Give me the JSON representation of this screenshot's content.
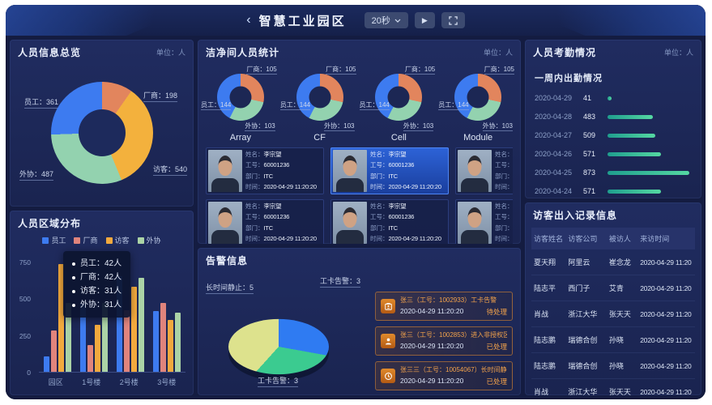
{
  "header": {
    "back_icon": "‹",
    "title": "智慧工业园区",
    "interval_label": "20秒",
    "play_icon": "▶"
  },
  "panels": {
    "overview": {
      "title": "人员信息总览",
      "unit": "单位：人",
      "donut": {
        "start": -10,
        "segments": [
          {
            "label": "厂商",
            "value": 198,
            "color": "#e2855d"
          },
          {
            "label": "访客",
            "value": 540,
            "color": "#f3b13d"
          },
          {
            "label": "外协",
            "value": 487,
            "color": "#93d2af"
          },
          {
            "label": "员工",
            "value": 361,
            "color": "#3d7bf0"
          }
        ]
      },
      "labels": {
        "employee": "员工：361",
        "vendor": "厂商：198",
        "visitor": "访客：540",
        "outsource": "外协：487"
      }
    },
    "region": {
      "title": "人员区域分布",
      "legend": [
        {
          "label": "员工",
          "color": "#3d7bf0"
        },
        {
          "label": "厂商",
          "color": "#e0847c"
        },
        {
          "label": "访客",
          "color": "#f2a93e"
        },
        {
          "label": "外协",
          "color": "#abd3a6"
        }
      ],
      "y_ticks": [
        "750",
        "500",
        "250",
        "0"
      ],
      "ymax": 750,
      "categories": [
        "园区",
        "1号楼",
        "2号楼",
        "3号楼"
      ],
      "series": [
        {
          "name": "员工",
          "values": [
            105,
            465,
            655,
            415
          ]
        },
        {
          "name": "厂商",
          "values": [
            285,
            185,
            420,
            470
          ]
        },
        {
          "name": "访客",
          "values": [
            740,
            325,
            585,
            355
          ]
        },
        {
          "name": "外协",
          "values": [
            475,
            470,
            645,
            405
          ]
        }
      ],
      "tooltip": [
        "员工：42人",
        "厂商：42人",
        "访客：31人",
        "外协：31人"
      ]
    },
    "cleanroom": {
      "title": "洁净间人员统计",
      "unit": "单位：人",
      "donut": {
        "start": -5,
        "segments": [
          {
            "label": "厂商",
            "value": 105,
            "color": "#e2855d"
          },
          {
            "label": "外协",
            "value": 103,
            "color": "#93d2af"
          },
          {
            "label": "员工",
            "value": 144,
            "color": "#3d7bf0"
          }
        ]
      },
      "labels": {
        "top": "厂商：105",
        "left": "员工：144",
        "bottom": "外协：103"
      },
      "donuts": [
        {
          "name": "Array"
        },
        {
          "name": "CF"
        },
        {
          "name": "Cell"
        },
        {
          "name": "Module"
        }
      ]
    },
    "persons": {
      "field_labels": {
        "name": "姓名：",
        "id": "工号：",
        "dept": "部门：",
        "time": "时间："
      },
      "cards": [
        {
          "name": "李宗望",
          "id": "60001236",
          "dept": "ITC",
          "time": "2020-04-29 11:20:20",
          "highlight": false
        },
        {
          "name": "李宗望",
          "id": "60001236",
          "dept": "ITC",
          "time": "2020-04-29 11:20:20",
          "highlight": true
        },
        {
          "name": "李宗望",
          "id": "60001236",
          "dept": "ITC",
          "time": "2020-04-29 11:20:20",
          "highlight": false
        },
        {
          "name": "李宗望",
          "id": "60001236",
          "dept": "ITC",
          "time": "2020-04-29 11:20:20",
          "highlight": false
        },
        {
          "name": "李宗望",
          "id": "60001236",
          "dept": "ITC",
          "time": "2020-04-29 11:20:20",
          "highlight": false
        },
        {
          "name": "李宗望",
          "id": "60001236",
          "dept": "ITC",
          "time": "2020-04-29 11:20:20",
          "highlight": false
        }
      ]
    },
    "alarm": {
      "title": "告警信息",
      "pie": {
        "start": 10,
        "segments": [
          {
            "label": "工卡告警",
            "value": 3,
            "color": "#2f7bf2"
          },
          {
            "label": "工卡告警",
            "value": 3,
            "color": "#3bcb90"
          },
          {
            "label": "长时间静止",
            "value": 5,
            "color": "#dde28d"
          }
        ],
        "labels": {
          "left": "长时间静止：5",
          "right": "工卡告警：3",
          "bottom": "工卡告警：3"
        }
      },
      "items": [
        {
          "icon": "badge-icon",
          "text": "张三（工号：1002933）工卡告警",
          "time": "2020-04-29 11:20:20",
          "status": "待处理"
        },
        {
          "icon": "person-icon",
          "text": "张三（工号：1002853）进入非授权区域B4-1F-C2",
          "time": "2020-04-29 11:20:20",
          "status": "已处理"
        },
        {
          "icon": "clock-icon",
          "text": "张三三（工号：10054067）长时间静止",
          "time": "2020-04-29 11:20:20",
          "status": "已处理"
        }
      ]
    },
    "attendance": {
      "title": "人员考勤情况",
      "unit": "单位：人",
      "subtitle": "一周内出勤情况",
      "max": 900,
      "rows": [
        {
          "date": "2020-04-29",
          "value": 41
        },
        {
          "date": "2020-04-28",
          "value": 483
        },
        {
          "date": "2020-04-27",
          "value": 509
        },
        {
          "date": "2020-04-26",
          "value": 571
        },
        {
          "date": "2020-04-25",
          "value": 873
        },
        {
          "date": "2020-04-24",
          "value": 571
        }
      ]
    },
    "visitors": {
      "title": "访客出入记录信息",
      "headers": [
        "访客姓名",
        "访客公司",
        "被访人",
        "来访时间"
      ],
      "rows": [
        [
          "夏天翔",
          "阿里云",
          "崔念龙",
          "2020-04-29 11:20"
        ],
        [
          "陆志平",
          "西门子",
          "艾青",
          "2020-04-29 11:20"
        ],
        [
          "肖战",
          "浙江大华",
          "张天天",
          "2020-04-29 11:20"
        ],
        [
          "陆志鹏",
          "瑞德合创",
          "孙晓",
          "2020-04-29 11:20"
        ],
        [
          "陆志鹏",
          "瑞德合创",
          "孙晓",
          "2020-04-29 11:20"
        ],
        [
          "肖战",
          "浙江大华",
          "张天天",
          "2020-04-29 11:20"
        ]
      ]
    }
  },
  "colors": {
    "accent_blue": "#2f7bf2",
    "alarm_orange": "#f2a24b",
    "teal_bar": "#3fd0a0"
  }
}
